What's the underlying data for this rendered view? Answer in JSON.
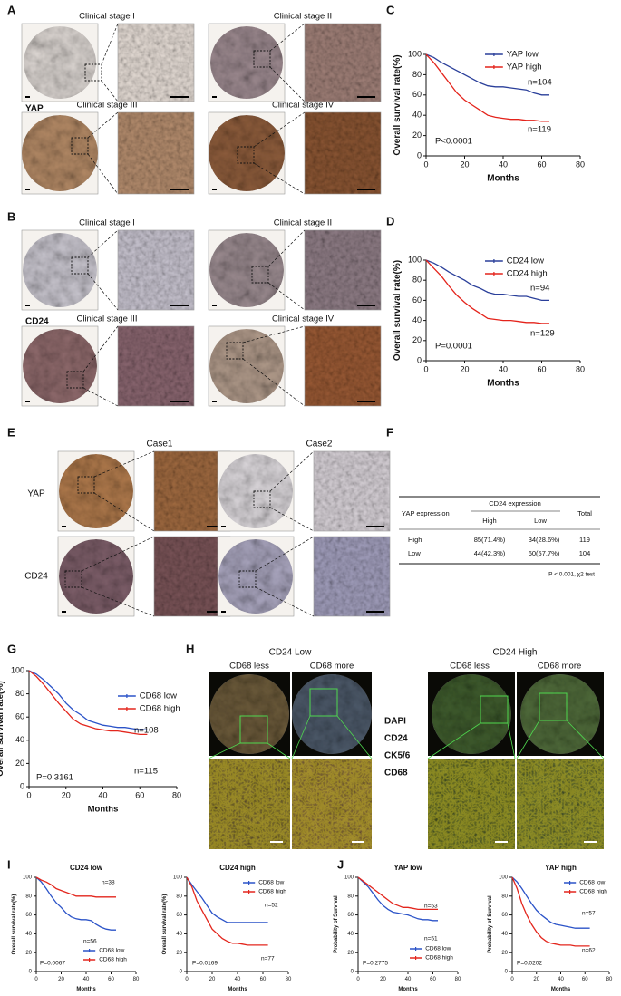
{
  "panel_labels": [
    "A",
    "B",
    "C",
    "D",
    "E",
    "F",
    "G",
    "H",
    "I",
    "J"
  ],
  "panel_a": {
    "marker": "YAP",
    "captions": [
      "Clinical stage I",
      "Clinical stage II",
      "Clinical stage III",
      "Clinical stage IV"
    ]
  },
  "panel_b": {
    "marker": "CD24",
    "captions": [
      "Clinical stage I",
      "Clinical stage II",
      "Clinical stage III",
      "Clinical stage IV"
    ]
  },
  "panel_e": {
    "columns": [
      "Case1",
      "Case2"
    ],
    "rows": [
      "YAP",
      "CD24"
    ]
  },
  "panel_f": {
    "row_header": "YAP expression",
    "group_header": "CD24 expression",
    "columns": [
      "High",
      "Low"
    ],
    "total_header": "Total",
    "rows": [
      [
        "High",
        "85(71.4%)",
        "34(28.6%)",
        119
      ],
      [
        "Low",
        "44(42.3%)",
        "60(57.7%)",
        104
      ]
    ],
    "note": "P < 0.001, χ2 test"
  },
  "panel_h": {
    "groups": [
      "CD24 Low",
      "CD24 High"
    ],
    "columns": [
      "CD68 less",
      "CD68 more"
    ],
    "stains": [
      "DAPI",
      "CD24",
      "CK5/6",
      "CD68"
    ],
    "stain_colors": [
      "#3347c8",
      "#2aa82a",
      "#e8871a",
      "#e6cf1c"
    ]
  },
  "chart_data": [
    {
      "type": "line",
      "ylabel": "Overall survival rate(%)",
      "xlabel": "Months",
      "x": [
        0,
        4,
        8,
        12,
        16,
        20,
        24,
        28,
        32,
        36,
        40,
        44,
        48,
        52,
        56,
        60,
        64
      ],
      "series": [
        {
          "name": "YAP  low",
          "color": "#2a3f9a",
          "values": [
            100,
            97,
            92,
            88,
            84,
            80,
            76,
            72,
            69,
            68,
            68,
            67,
            66,
            65,
            62,
            60,
            60
          ]
        },
        {
          "name": "YAP  high",
          "color": "#e4231b",
          "values": [
            100,
            92,
            82,
            72,
            62,
            55,
            50,
            45,
            40,
            38,
            37,
            36,
            36,
            35,
            35,
            34,
            34
          ]
        }
      ],
      "annotations": [
        "n=104",
        "n=119",
        "P<0.0001"
      ],
      "xlim": [
        0,
        80
      ],
      "ylim": [
        0,
        100
      ],
      "xticks": [
        0,
        20,
        40,
        60,
        80
      ],
      "yticks": [
        0,
        20,
        40,
        60,
        80,
        100
      ]
    },
    {
      "type": "line",
      "ylabel": "Overall survival rate(%)",
      "xlabel": "Months",
      "x": [
        0,
        4,
        8,
        12,
        16,
        20,
        24,
        28,
        32,
        36,
        40,
        44,
        48,
        52,
        56,
        60,
        64
      ],
      "series": [
        {
          "name": "CD24  low",
          "color": "#2a3f9a",
          "values": [
            100,
            97,
            93,
            88,
            84,
            80,
            75,
            72,
            68,
            66,
            66,
            65,
            64,
            64,
            62,
            60,
            60
          ]
        },
        {
          "name": "CD24  high",
          "color": "#e4231b",
          "values": [
            100,
            92,
            84,
            74,
            65,
            58,
            52,
            47,
            42,
            41,
            40,
            40,
            39,
            38,
            38,
            37,
            37
          ]
        }
      ],
      "annotations": [
        "n=94",
        "n=129",
        "P=0.0001"
      ],
      "xlim": [
        0,
        80
      ],
      "ylim": [
        0,
        100
      ],
      "xticks": [
        0,
        20,
        40,
        60,
        80
      ],
      "yticks": [
        0,
        20,
        40,
        60,
        80,
        100
      ]
    },
    {
      "type": "line",
      "ylabel": "Overall survival rate(%)",
      "xlabel": "Months",
      "x": [
        0,
        4,
        8,
        12,
        16,
        20,
        24,
        28,
        32,
        36,
        40,
        44,
        48,
        52,
        56,
        60,
        64
      ],
      "series": [
        {
          "name": "CD68 low",
          "color": "#2b53c8",
          "values": [
            100,
            97,
            92,
            86,
            80,
            72,
            66,
            62,
            57,
            55,
            53,
            52,
            51,
            51,
            50,
            49,
            49
          ]
        },
        {
          "name": "CD68 high",
          "color": "#e3261d",
          "values": [
            100,
            95,
            88,
            80,
            72,
            65,
            58,
            54,
            52,
            50,
            49,
            48,
            48,
            47,
            46,
            45,
            45
          ]
        }
      ],
      "annotations": [
        "n=108",
        "n=115",
        "P=0.3161"
      ],
      "xlim": [
        0,
        80
      ],
      "ylim": [
        0,
        100
      ],
      "xticks": [
        0,
        20,
        40,
        60,
        80
      ],
      "yticks": [
        0,
        20,
        40,
        60,
        80,
        100
      ]
    },
    {
      "type": "line",
      "title": "CD24 low",
      "ylabel": "Overall survival rate(%)",
      "xlabel": "Months",
      "x": [
        0,
        4,
        8,
        12,
        16,
        20,
        24,
        28,
        32,
        36,
        40,
        44,
        48,
        52,
        56,
        60,
        64
      ],
      "series": [
        {
          "name": "CD68 low",
          "color": "#2b53c8",
          "values": [
            100,
            95,
            88,
            80,
            73,
            68,
            62,
            58,
            56,
            55,
            55,
            54,
            50,
            47,
            45,
            44,
            44
          ]
        },
        {
          "name": "CD68 high",
          "color": "#e3261d",
          "values": [
            100,
            97,
            95,
            92,
            88,
            86,
            84,
            82,
            80,
            80,
            80,
            80,
            79,
            79,
            79,
            79,
            79
          ]
        }
      ],
      "annotations": [
        "n=38",
        "n=56",
        "P=0.0067"
      ],
      "xlim": [
        0,
        80
      ],
      "ylim": [
        0,
        100
      ],
      "xticks": [
        0,
        20,
        40,
        60,
        80
      ],
      "yticks": [
        0,
        20,
        40,
        60,
        80,
        100
      ]
    },
    {
      "type": "line",
      "title": "CD24 high",
      "ylabel": "Overall survival rate(%)",
      "xlabel": "Months",
      "x": [
        0,
        4,
        8,
        12,
        16,
        20,
        24,
        28,
        32,
        36,
        40,
        44,
        48,
        52,
        56,
        60,
        64
      ],
      "series": [
        {
          "name": "CD68 low",
          "color": "#2b53c8",
          "values": [
            100,
            92,
            85,
            78,
            70,
            62,
            58,
            55,
            52,
            52,
            52,
            52,
            52,
            52,
            52,
            52,
            52
          ]
        },
        {
          "name": "CD68 high",
          "color": "#e3261d",
          "values": [
            100,
            90,
            75,
            65,
            55,
            45,
            40,
            35,
            32,
            30,
            30,
            29,
            28,
            28,
            28,
            28,
            28
          ]
        }
      ],
      "annotations": [
        "n=52",
        "n=77",
        "P=0.0169"
      ],
      "xlim": [
        0,
        80
      ],
      "ylim": [
        0,
        100
      ],
      "xticks": [
        0,
        20,
        40,
        60,
        80
      ],
      "yticks": [
        0,
        20,
        40,
        60,
        80,
        100
      ]
    },
    {
      "type": "line",
      "title": "YAP low",
      "ylabel": "Probability of Survival",
      "xlabel": "Months",
      "x": [
        0,
        4,
        8,
        12,
        16,
        20,
        24,
        28,
        32,
        36,
        40,
        44,
        48,
        52,
        56,
        60,
        64
      ],
      "series": [
        {
          "name": "CD68 low",
          "color": "#2b53c8",
          "values": [
            100,
            95,
            90,
            83,
            76,
            70,
            66,
            63,
            62,
            61,
            60,
            58,
            56,
            55,
            55,
            54,
            54
          ]
        },
        {
          "name": "CD68 high",
          "color": "#e3261d",
          "values": [
            100,
            96,
            92,
            88,
            84,
            80,
            76,
            72,
            70,
            68,
            68,
            67,
            66,
            66,
            66,
            66,
            66
          ]
        }
      ],
      "annotations": [
        "n=53",
        "n=51",
        "P=0.2775"
      ],
      "xlim": [
        0,
        80
      ],
      "ylim": [
        0,
        100
      ],
      "xticks": [
        0,
        20,
        40,
        60,
        80
      ],
      "yticks": [
        0,
        20,
        40,
        60,
        80,
        100
      ]
    },
    {
      "type": "line",
      "title": "YAP high",
      "ylabel": "Probability of Survival",
      "xlabel": "Months",
      "x": [
        0,
        4,
        8,
        12,
        16,
        20,
        24,
        28,
        32,
        36,
        40,
        44,
        48,
        52,
        56,
        60,
        64
      ],
      "series": [
        {
          "name": "CD68 low",
          "color": "#2b53c8",
          "values": [
            100,
            95,
            88,
            80,
            72,
            65,
            60,
            56,
            52,
            50,
            49,
            48,
            47,
            46,
            46,
            46,
            46
          ]
        },
        {
          "name": "CD68 high",
          "color": "#e3261d",
          "values": [
            100,
            88,
            72,
            60,
            50,
            42,
            36,
            32,
            30,
            29,
            28,
            28,
            28,
            27,
            27,
            27,
            27
          ]
        }
      ],
      "annotations": [
        "n=57",
        "n=62",
        "P=0.0202"
      ],
      "xlim": [
        0,
        80
      ],
      "ylim": [
        0,
        100
      ],
      "xticks": [
        0,
        20,
        40,
        60,
        80
      ],
      "yticks": [
        0,
        20,
        40,
        60,
        80,
        100
      ]
    }
  ]
}
